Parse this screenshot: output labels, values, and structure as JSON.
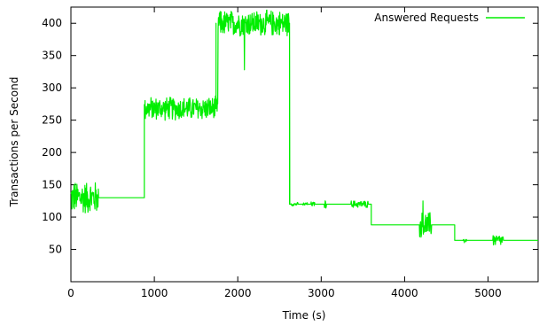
{
  "chart_data": {
    "type": "line",
    "title": "",
    "xlabel": "Time (s)",
    "ylabel": "Transactions per Second",
    "xlim": [
      0,
      5600
    ],
    "ylim": [
      0,
      425
    ],
    "xticks": [
      0,
      1000,
      2000,
      3000,
      4000,
      5000
    ],
    "yticks": [
      50,
      100,
      150,
      200,
      250,
      300,
      350,
      400
    ],
    "grid": false,
    "legend_position": "top-right",
    "series": [
      {
        "name": "Answered Requests",
        "color": "#00ee00",
        "step_levels": [
          {
            "x_start": 0,
            "x_end": 880,
            "y": 130
          },
          {
            "x_start": 880,
            "x_end": 1740,
            "y": 268
          },
          {
            "x_start": 1740,
            "x_end": 2620,
            "y": 400
          },
          {
            "x_start": 2620,
            "x_end": 3600,
            "y": 120
          },
          {
            "x_start": 3600,
            "x_end": 4600,
            "y": 88
          },
          {
            "x_start": 4600,
            "x_end": 5600,
            "y": 64
          }
        ],
        "noisy_bursts": [
          {
            "x_start": 0,
            "x_end": 330,
            "center": 130,
            "amplitude": 28
          },
          {
            "x_start": 880,
            "x_end": 1760,
            "center": 268,
            "amplitude": 20
          },
          {
            "x_start": 1740,
            "x_end": 2620,
            "center": 400,
            "amplitude": 22
          },
          {
            "x_start": 2640,
            "x_end": 2720,
            "center": 120,
            "amplitude": 3
          },
          {
            "x_start": 2780,
            "x_end": 2840,
            "center": 120,
            "amplitude": 3
          },
          {
            "x_start": 2880,
            "x_end": 2920,
            "center": 120,
            "amplitude": 4
          },
          {
            "x_start": 3040,
            "x_end": 3060,
            "center": 120,
            "amplitude": 8
          },
          {
            "x_start": 3360,
            "x_end": 3560,
            "center": 120,
            "amplitude": 6
          },
          {
            "x_start": 4180,
            "x_end": 4320,
            "center": 88,
            "amplitude": 22
          },
          {
            "x_start": 4700,
            "x_end": 4740,
            "center": 64,
            "amplitude": 5
          },
          {
            "x_start": 5060,
            "x_end": 5180,
            "center": 64,
            "amplitude": 10
          }
        ],
        "spikes": [
          {
            "x": 2080,
            "y": 328
          },
          {
            "x": 4220,
            "y": 60
          },
          {
            "x": 4220,
            "y": 125
          }
        ]
      }
    ]
  }
}
